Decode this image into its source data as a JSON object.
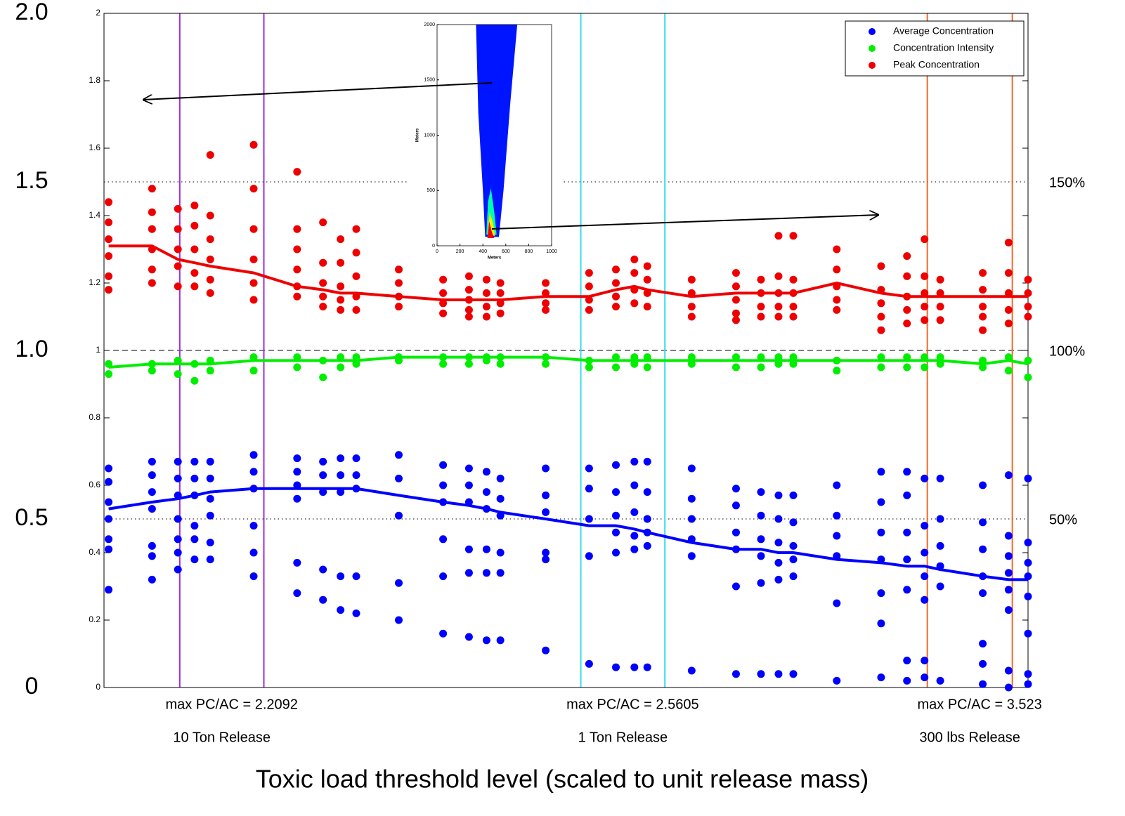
{
  "chart_data": {
    "type": "scatter",
    "xlabel": "Toxic load threshold level (scaled to unit release mass)",
    "xlim": [
      0,
      100
    ],
    "ylim": [
      0,
      2
    ],
    "yticks": [
      0,
      0.2,
      0.4,
      0.6,
      0.8,
      1,
      1.2,
      1.4,
      1.6,
      1.8,
      2
    ],
    "major_yticks": [
      {
        "value": 2,
        "label": "2.0"
      },
      1.5,
      {
        "value": 1,
        "label": "1.0"
      },
      0.5,
      0
    ],
    "y2ticks": [
      {
        "value": 1.5,
        "label": "150%"
      },
      {
        "value": 1,
        "label": "100%"
      },
      {
        "value": 0.5,
        "label": "50%"
      }
    ],
    "reference_lines": [
      {
        "value": 1.5,
        "dash": "dotted"
      },
      {
        "value": 1,
        "dash": "dashed"
      },
      {
        "value": 0.5,
        "dash": "dotted"
      }
    ],
    "grid": false,
    "legend": "upper right",
    "x": [
      0.5,
      5.2,
      8.0,
      9.8,
      11.5,
      16.2,
      20.9,
      23.7,
      25.6,
      27.3,
      31.9,
      36.7,
      39.5,
      41.4,
      42.9,
      47.8,
      52.5,
      55.4,
      57.4,
      58.8,
      63.6,
      68.4,
      71.1,
      73.0,
      74.6,
      79.3,
      84.1,
      86.9,
      88.8,
      90.5,
      95.1,
      97.9,
      100
    ],
    "series": [
      {
        "name": "Average Concentration",
        "color": "#0000ff",
        "values": [
          [
            0.65,
            0.61,
            0.55,
            0.5,
            0.44,
            0.41,
            0.29
          ],
          [
            0.67,
            0.63,
            0.58,
            0.53,
            0.42,
            0.39,
            0.32
          ],
          [
            0.67,
            0.62,
            0.57,
            0.5,
            0.44,
            0.4,
            0.35
          ],
          [
            0.67,
            0.62,
            0.57,
            0.48,
            0.44,
            0.38
          ],
          [
            0.67,
            0.62,
            0.56,
            0.51,
            0.43,
            0.38
          ],
          [
            0.69,
            0.64,
            0.59,
            0.48,
            0.4,
            0.33
          ],
          [
            0.68,
            0.64,
            0.6,
            0.56,
            0.37,
            0.28
          ],
          [
            0.67,
            0.63,
            0.58,
            0.35,
            0.26
          ],
          [
            0.68,
            0.63,
            0.58,
            0.33,
            0.23
          ],
          [
            0.68,
            0.63,
            0.59,
            0.33,
            0.22
          ],
          [
            0.69,
            0.62,
            0.51,
            0.31,
            0.2
          ],
          [
            0.66,
            0.6,
            0.55,
            0.44,
            0.33,
            0.16
          ],
          [
            0.65,
            0.6,
            0.55,
            0.41,
            0.34,
            0.15
          ],
          [
            0.64,
            0.58,
            0.53,
            0.41,
            0.34,
            0.14
          ],
          [
            0.62,
            0.56,
            0.51,
            0.4,
            0.34,
            0.14
          ],
          [
            0.65,
            0.57,
            0.52,
            0.4,
            0.38,
            0.11
          ],
          [
            0.65,
            0.59,
            0.5,
            0.39,
            0.07
          ],
          [
            0.66,
            0.58,
            0.51,
            0.46,
            0.4,
            0.06
          ],
          [
            0.67,
            0.6,
            0.52,
            0.45,
            0.41,
            0.06
          ],
          [
            0.67,
            0.58,
            0.5,
            0.46,
            0.42,
            0.06
          ],
          [
            0.65,
            0.56,
            0.5,
            0.44,
            0.39,
            0.05
          ],
          [
            0.59,
            0.54,
            0.46,
            0.41,
            0.3,
            0.04
          ],
          [
            0.58,
            0.51,
            0.44,
            0.39,
            0.31,
            0.04
          ],
          [
            0.57,
            0.5,
            0.43,
            0.37,
            0.32,
            0.04
          ],
          [
            0.57,
            0.49,
            0.42,
            0.38,
            0.33,
            0.04
          ],
          [
            0.6,
            0.51,
            0.45,
            0.39,
            0.25,
            0.02
          ],
          [
            0.64,
            0.55,
            0.46,
            0.38,
            0.28,
            0.19,
            0.03
          ],
          [
            0.64,
            0.57,
            0.46,
            0.38,
            0.29,
            0.08,
            0.02
          ],
          [
            0.62,
            0.48,
            0.4,
            0.33,
            0.26,
            0.08,
            0.03
          ],
          [
            0.62,
            0.5,
            0.42,
            0.36,
            0.3,
            0.02
          ],
          [
            0.6,
            0.49,
            0.41,
            0.33,
            0.28,
            0.13,
            0.07,
            0.01
          ],
          [
            0.63,
            0.45,
            0.39,
            0.34,
            0.29,
            0.23,
            0.05,
            0.0
          ],
          [
            0.62,
            0.43,
            0.37,
            0.33,
            0.27,
            0.16,
            0.04,
            0.01
          ]
        ],
        "trend": [
          0.53,
          0.55,
          0.56,
          0.57,
          0.58,
          0.59,
          0.59,
          0.59,
          0.59,
          0.59,
          0.57,
          0.55,
          0.54,
          0.53,
          0.52,
          0.5,
          0.48,
          0.48,
          0.47,
          0.46,
          0.43,
          0.41,
          0.41,
          0.4,
          0.4,
          0.38,
          0.37,
          0.36,
          0.36,
          0.35,
          0.33,
          0.32,
          0.32
        ]
      },
      {
        "name": "Concentration Intensity",
        "color": "#00ee00",
        "values": [
          [
            0.96,
            0.93
          ],
          [
            0.96,
            0.94
          ],
          [
            0.97,
            0.93
          ],
          [
            0.96,
            0.91
          ],
          [
            0.97,
            0.94
          ],
          [
            0.98,
            0.94
          ],
          [
            0.98,
            0.95
          ],
          [
            0.97,
            0.92
          ],
          [
            0.98,
            0.95
          ],
          [
            0.98,
            0.96
          ],
          [
            0.98,
            0.97
          ],
          [
            0.98,
            0.96
          ],
          [
            0.98,
            0.96
          ],
          [
            0.98,
            0.97
          ],
          [
            0.98,
            0.96
          ],
          [
            0.98,
            0.96
          ],
          [
            0.97,
            0.95
          ],
          [
            0.98,
            0.95
          ],
          [
            0.98,
            0.96
          ],
          [
            0.98,
            0.95
          ],
          [
            0.98,
            0.96
          ],
          [
            0.98,
            0.95
          ],
          [
            0.98,
            0.95
          ],
          [
            0.98,
            0.96
          ],
          [
            0.98,
            0.96
          ],
          [
            0.97,
            0.94
          ],
          [
            0.98,
            0.95
          ],
          [
            0.98,
            0.95
          ],
          [
            0.98,
            0.95
          ],
          [
            0.98,
            0.96
          ],
          [
            0.97,
            0.95
          ],
          [
            0.98,
            0.94
          ],
          [
            0.97,
            0.92
          ]
        ],
        "trend": [
          0.95,
          0.96,
          0.96,
          0.96,
          0.96,
          0.97,
          0.97,
          0.97,
          0.97,
          0.97,
          0.98,
          0.98,
          0.98,
          0.98,
          0.98,
          0.98,
          0.97,
          0.97,
          0.97,
          0.97,
          0.97,
          0.97,
          0.97,
          0.97,
          0.97,
          0.97,
          0.97,
          0.97,
          0.97,
          0.97,
          0.96,
          0.97,
          0.96
        ]
      },
      {
        "name": "Peak Concentration",
        "color": "#ee0000",
        "values": [
          [
            1.44,
            1.38,
            1.33,
            1.28,
            1.22,
            1.18
          ],
          [
            1.48,
            1.41,
            1.36,
            1.3,
            1.24,
            1.2
          ],
          [
            1.42,
            1.36,
            1.3,
            1.25,
            1.19
          ],
          [
            1.43,
            1.37,
            1.3,
            1.23,
            1.19
          ],
          [
            1.58,
            1.4,
            1.33,
            1.27,
            1.21,
            1.17
          ],
          [
            1.61,
            1.48,
            1.36,
            1.27,
            1.2,
            1.15
          ],
          [
            1.53,
            1.36,
            1.3,
            1.24,
            1.19,
            1.16
          ],
          [
            1.38,
            1.26,
            1.2,
            1.16,
            1.13
          ],
          [
            1.33,
            1.26,
            1.19,
            1.15,
            1.12
          ],
          [
            1.36,
            1.29,
            1.22,
            1.16,
            1.12
          ],
          [
            1.24,
            1.2,
            1.16,
            1.13
          ],
          [
            1.21,
            1.17,
            1.14,
            1.11
          ],
          [
            1.22,
            1.18,
            1.15,
            1.12,
            1.1
          ],
          [
            1.21,
            1.17,
            1.13,
            1.1
          ],
          [
            1.2,
            1.17,
            1.14,
            1.11
          ],
          [
            1.2,
            1.17,
            1.14,
            1.12
          ],
          [
            1.23,
            1.19,
            1.15,
            1.12
          ],
          [
            1.24,
            1.2,
            1.16,
            1.13
          ],
          [
            1.27,
            1.23,
            1.18,
            1.14
          ],
          [
            1.25,
            1.21,
            1.17,
            1.13
          ],
          [
            1.21,
            1.17,
            1.13,
            1.1
          ],
          [
            1.23,
            1.19,
            1.15,
            1.11,
            1.09
          ],
          [
            1.21,
            1.17,
            1.13,
            1.1
          ],
          [
            1.34,
            1.22,
            1.17,
            1.13,
            1.1
          ],
          [
            1.34,
            1.21,
            1.17,
            1.13,
            1.1
          ],
          [
            1.3,
            1.24,
            1.19,
            1.15,
            1.12
          ],
          [
            1.25,
            1.18,
            1.14,
            1.1,
            1.06
          ],
          [
            1.28,
            1.22,
            1.16,
            1.12,
            1.08
          ],
          [
            1.33,
            1.22,
            1.17,
            1.13,
            1.09
          ],
          [
            1.21,
            1.17,
            1.13,
            1.09
          ],
          [
            1.23,
            1.18,
            1.13,
            1.1,
            1.06
          ],
          [
            1.32,
            1.23,
            1.17,
            1.12,
            1.08
          ],
          [
            1.21,
            1.17,
            1.13,
            1.1
          ]
        ],
        "trend": [
          1.31,
          1.31,
          1.27,
          1.26,
          1.25,
          1.23,
          1.19,
          1.18,
          1.17,
          1.17,
          1.16,
          1.15,
          1.15,
          1.15,
          1.15,
          1.16,
          1.16,
          1.18,
          1.19,
          1.18,
          1.16,
          1.17,
          1.17,
          1.17,
          1.17,
          1.2,
          1.17,
          1.16,
          1.16,
          1.16,
          1.16,
          1.16,
          1.16
        ]
      }
    ],
    "regions": [
      {
        "annotation": "max PC/AC = 2.2092",
        "label": "10 Ton Release",
        "color": "#9b30e0",
        "x": [
          8.2,
          17.3
        ]
      },
      {
        "annotation": "max PC/AC = 2.5605",
        "label": "1 Ton Release",
        "color": "#33dde8",
        "x": [
          51.6,
          60.7
        ]
      },
      {
        "annotation": "max PC/AC = 3.523",
        "label": "300 lbs Release",
        "color": "#f06a2a",
        "x": [
          89.1,
          98.3
        ]
      }
    ],
    "inset": {
      "xlabel": "Meters",
      "ylabel": "Meters",
      "xlim": [
        0,
        1000
      ],
      "ylim": [
        0,
        2000
      ],
      "xticks": [
        0,
        200,
        400,
        600,
        800,
        1000
      ],
      "yticks": [
        0,
        500,
        1000,
        1500,
        2000
      ]
    }
  }
}
